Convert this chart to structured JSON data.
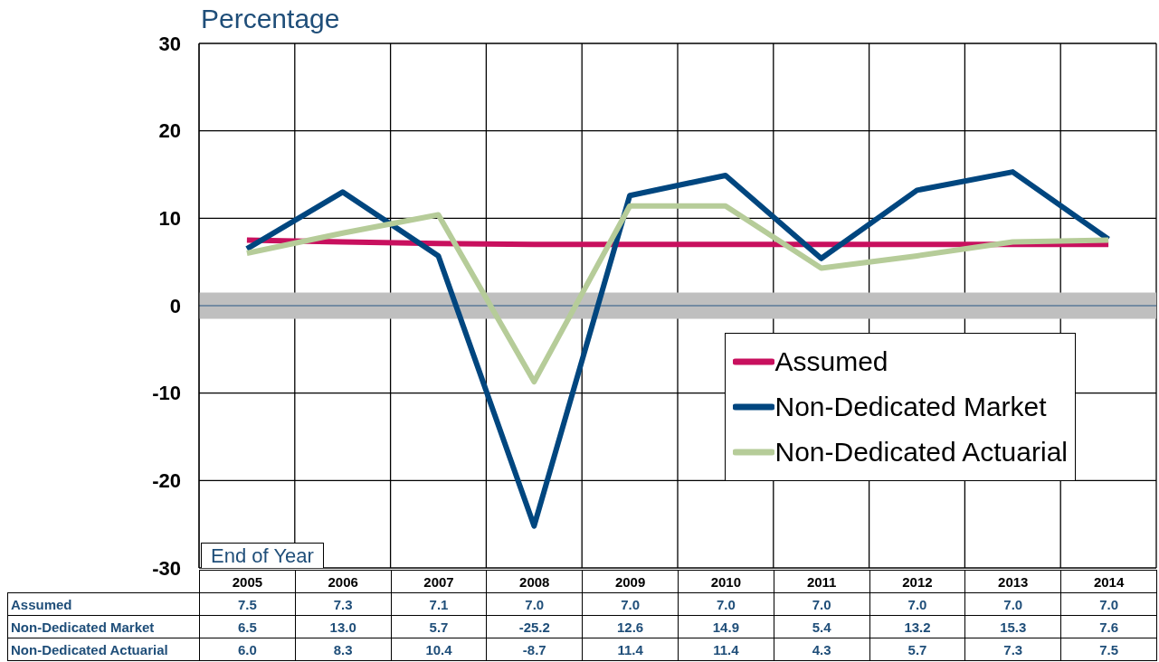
{
  "chart_data": {
    "type": "line",
    "ylabel": "Percentage",
    "xlabel": "End of Year",
    "categories": [
      "2005",
      "2006",
      "2007",
      "2008",
      "2009",
      "2010",
      "2011",
      "2012",
      "2013",
      "2014"
    ],
    "series": [
      {
        "name": "Assumed",
        "color": "#c8105e",
        "values": [
          7.5,
          7.3,
          7.1,
          7.0,
          7.0,
          7.0,
          7.0,
          7.0,
          7.0,
          7.0
        ],
        "value_labels": [
          "7.5",
          "7.3",
          "7.1",
          "7.0",
          "7.0",
          "7.0",
          "7.0",
          "7.0",
          "7.0",
          "7.0"
        ]
      },
      {
        "name": "Non-Dedicated Market",
        "color": "#00467f",
        "values": [
          6.5,
          13.0,
          5.7,
          -25.2,
          12.6,
          14.9,
          5.4,
          13.2,
          15.3,
          7.6
        ],
        "value_labels": [
          "6.5",
          "13.0",
          "5.7",
          "-25.2",
          "12.6",
          "14.9",
          "5.4",
          "13.2",
          "15.3",
          "7.6"
        ]
      },
      {
        "name": "Non-Dedicated Actuarial",
        "color": "#b6cc99",
        "values": [
          6.0,
          8.3,
          10.4,
          -8.7,
          11.4,
          11.4,
          4.3,
          5.7,
          7.3,
          7.5
        ],
        "value_labels": [
          "6.0",
          "8.3",
          "10.4",
          "-8.7",
          "11.4",
          "11.4",
          "4.3",
          "5.7",
          "7.3",
          "7.5"
        ]
      }
    ],
    "ylim": [
      -30,
      30
    ],
    "yticks": [
      -30,
      -20,
      -10,
      0,
      10,
      20,
      30
    ],
    "grid": true,
    "legend": "bottom right",
    "marker": "none",
    "line_style": "solid",
    "bands": [
      {
        "axis": "y",
        "from": -1.5,
        "to": 1.5,
        "color": "#bfbfbf"
      }
    ],
    "ref_lines": [
      {
        "axis": "y",
        "value": 0,
        "color": "#5a7a99"
      }
    ]
  }
}
